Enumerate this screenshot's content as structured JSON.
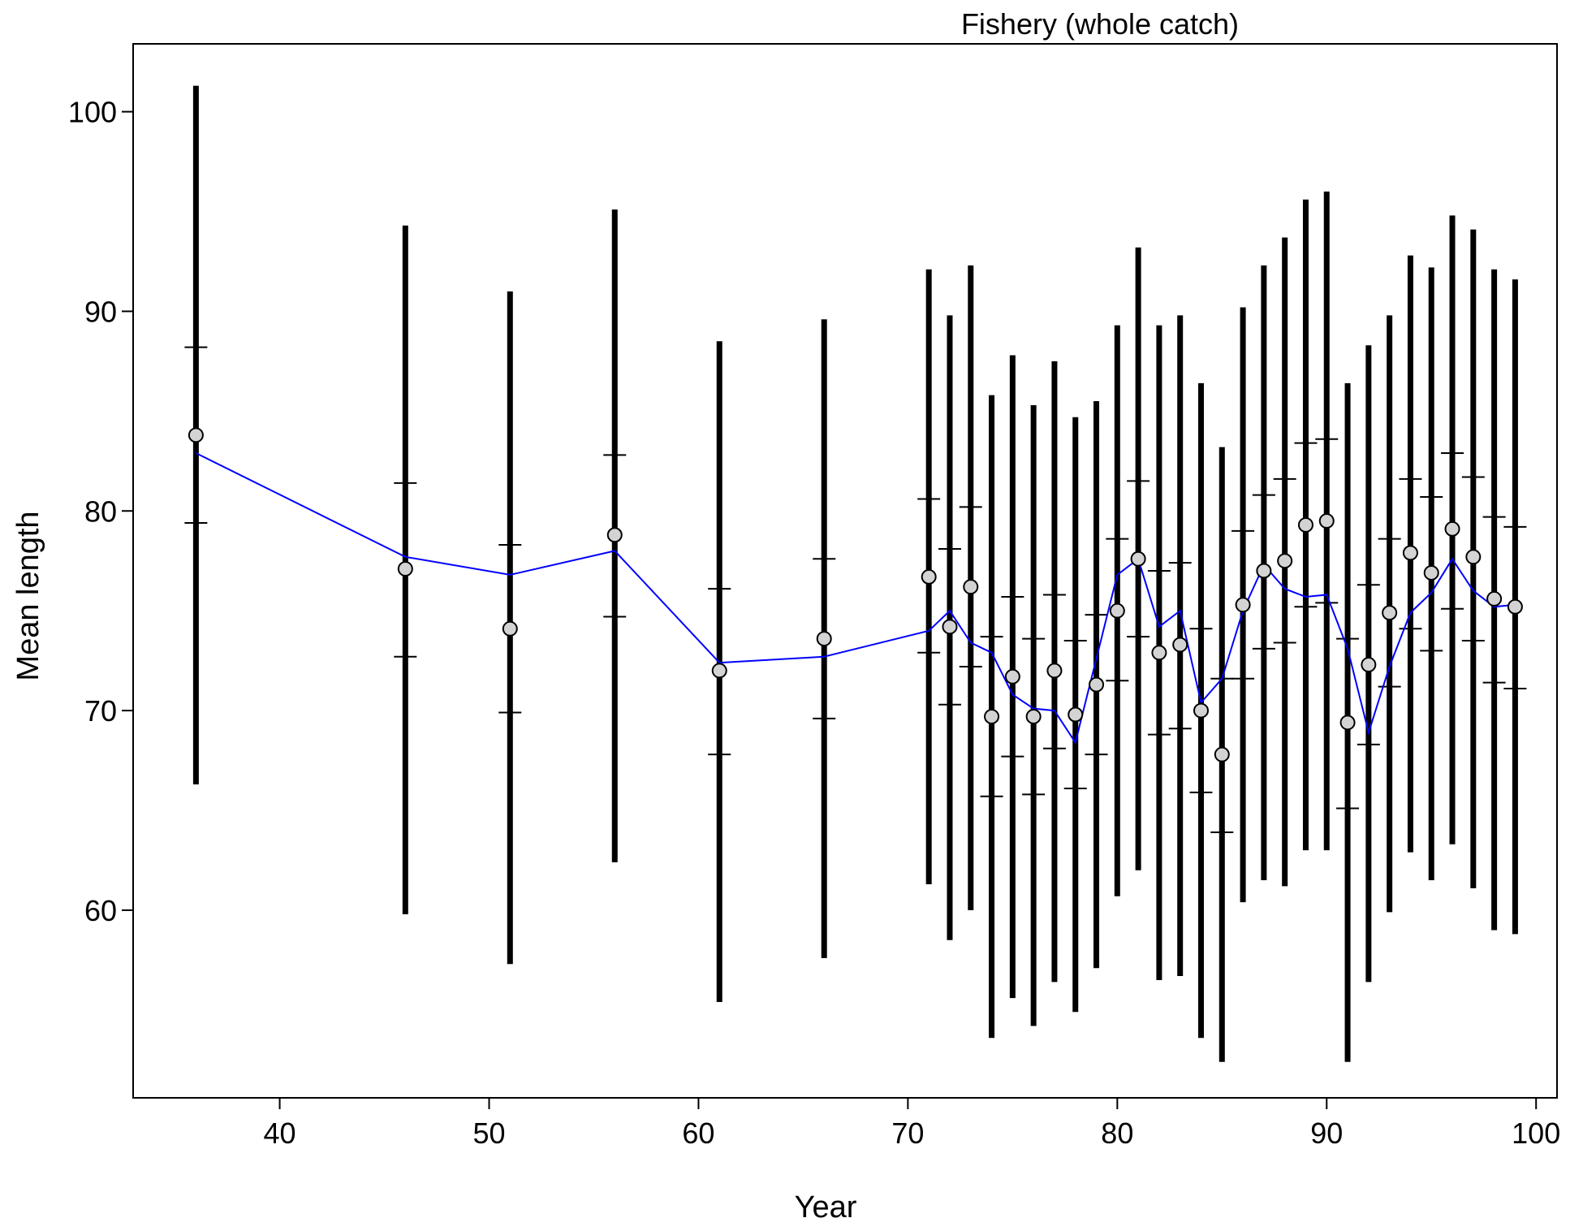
{
  "chart_data": {
    "type": "scatter",
    "title": "Fishery (whole catch)",
    "xlabel": "Year",
    "ylabel": "Mean length",
    "xlim": [
      33,
      101
    ],
    "ylim": [
      50.6,
      103.4
    ],
    "xticks": [
      40,
      50,
      60,
      70,
      80,
      90,
      100
    ],
    "yticks": [
      60,
      70,
      80,
      90,
      100
    ],
    "grid": false,
    "colors": {
      "observed": "#d3d3d3",
      "expected": "#0000ff",
      "interval": "#000000"
    },
    "points": [
      {
        "x": 36,
        "obs": 83.8,
        "exp": 82.9,
        "lo": 66.3,
        "hi": 101.3,
        "in_lo": 79.4,
        "in_hi": 88.2
      },
      {
        "x": 46,
        "obs": 77.1,
        "exp": 77.7,
        "lo": 59.8,
        "hi": 94.3,
        "in_lo": 72.7,
        "in_hi": 81.4
      },
      {
        "x": 51,
        "obs": 74.1,
        "exp": 76.8,
        "lo": 57.3,
        "hi": 91.0,
        "in_lo": 69.9,
        "in_hi": 78.3
      },
      {
        "x": 56,
        "obs": 78.8,
        "exp": 78.0,
        "lo": 62.4,
        "hi": 95.1,
        "in_lo": 74.7,
        "in_hi": 82.8
      },
      {
        "x": 61,
        "obs": 72.0,
        "exp": 72.4,
        "lo": 55.4,
        "hi": 88.5,
        "in_lo": 67.8,
        "in_hi": 76.1
      },
      {
        "x": 66,
        "obs": 73.6,
        "exp": 72.7,
        "lo": 57.6,
        "hi": 89.6,
        "in_lo": 69.6,
        "in_hi": 77.6
      },
      {
        "x": 71,
        "obs": 76.7,
        "exp": 74.0,
        "lo": 61.3,
        "hi": 92.1,
        "in_lo": 72.9,
        "in_hi": 80.6
      },
      {
        "x": 72,
        "obs": 74.2,
        "exp": 75.0,
        "lo": 58.5,
        "hi": 89.8,
        "in_lo": 70.3,
        "in_hi": 78.1
      },
      {
        "x": 73,
        "obs": 76.2,
        "exp": 73.4,
        "lo": 60.0,
        "hi": 92.3,
        "in_lo": 72.2,
        "in_hi": 80.2
      },
      {
        "x": 74,
        "obs": 69.7,
        "exp": 72.9,
        "lo": 53.6,
        "hi": 85.8,
        "in_lo": 65.7,
        "in_hi": 73.7
      },
      {
        "x": 75,
        "obs": 71.7,
        "exp": 70.8,
        "lo": 55.6,
        "hi": 87.8,
        "in_lo": 67.7,
        "in_hi": 75.7
      },
      {
        "x": 76,
        "obs": 69.7,
        "exp": 70.1,
        "lo": 54.2,
        "hi": 85.3,
        "in_lo": 65.8,
        "in_hi": 73.6
      },
      {
        "x": 77,
        "obs": 72.0,
        "exp": 70.0,
        "lo": 56.4,
        "hi": 87.5,
        "in_lo": 68.1,
        "in_hi": 75.8
      },
      {
        "x": 78,
        "obs": 69.8,
        "exp": 68.4,
        "lo": 54.9,
        "hi": 84.7,
        "in_lo": 66.1,
        "in_hi": 73.5
      },
      {
        "x": 79,
        "obs": 71.3,
        "exp": 72.6,
        "lo": 57.1,
        "hi": 85.5,
        "in_lo": 67.8,
        "in_hi": 74.8
      },
      {
        "x": 80,
        "obs": 75.0,
        "exp": 76.8,
        "lo": 60.7,
        "hi": 89.3,
        "in_lo": 71.5,
        "in_hi": 78.6
      },
      {
        "x": 81,
        "obs": 77.6,
        "exp": 77.6,
        "lo": 62.0,
        "hi": 93.2,
        "in_lo": 73.7,
        "in_hi": 81.5
      },
      {
        "x": 82,
        "obs": 72.9,
        "exp": 74.2,
        "lo": 56.5,
        "hi": 89.3,
        "in_lo": 68.8,
        "in_hi": 77.0
      },
      {
        "x": 83,
        "obs": 73.3,
        "exp": 75.0,
        "lo": 56.7,
        "hi": 89.8,
        "in_lo": 69.1,
        "in_hi": 77.4
      },
      {
        "x": 84,
        "obs": 70.0,
        "exp": 70.4,
        "lo": 53.6,
        "hi": 86.4,
        "in_lo": 65.9,
        "in_hi": 74.1
      },
      {
        "x": 85,
        "obs": 67.8,
        "exp": 71.6,
        "lo": 52.4,
        "hi": 83.2,
        "in_lo": 63.9,
        "in_hi": 71.6
      },
      {
        "x": 86,
        "obs": 75.3,
        "exp": 75.0,
        "lo": 60.4,
        "hi": 90.2,
        "in_lo": 71.6,
        "in_hi": 79.0
      },
      {
        "x": 87,
        "obs": 77.0,
        "exp": 77.3,
        "lo": 61.5,
        "hi": 92.3,
        "in_lo": 73.1,
        "in_hi": 80.8
      },
      {
        "x": 88,
        "obs": 77.5,
        "exp": 76.1,
        "lo": 61.2,
        "hi": 93.7,
        "in_lo": 73.4,
        "in_hi": 81.6
      },
      {
        "x": 89,
        "obs": 79.3,
        "exp": 75.7,
        "lo": 63.0,
        "hi": 95.6,
        "in_lo": 75.2,
        "in_hi": 83.4
      },
      {
        "x": 90,
        "obs": 79.5,
        "exp": 75.8,
        "lo": 63.0,
        "hi": 96.0,
        "in_lo": 75.4,
        "in_hi": 83.6
      },
      {
        "x": 91,
        "obs": 69.4,
        "exp": 73.1,
        "lo": 52.4,
        "hi": 86.4,
        "in_lo": 65.1,
        "in_hi": 73.6
      },
      {
        "x": 92,
        "obs": 72.3,
        "exp": 68.9,
        "lo": 56.4,
        "hi": 88.3,
        "in_lo": 68.3,
        "in_hi": 76.3
      },
      {
        "x": 93,
        "obs": 74.9,
        "exp": 72.2,
        "lo": 59.9,
        "hi": 89.8,
        "in_lo": 71.2,
        "in_hi": 78.6
      },
      {
        "x": 94,
        "obs": 77.9,
        "exp": 74.9,
        "lo": 62.9,
        "hi": 92.8,
        "in_lo": 74.1,
        "in_hi": 81.6
      },
      {
        "x": 95,
        "obs": 76.9,
        "exp": 75.9,
        "lo": 61.5,
        "hi": 92.2,
        "in_lo": 73.0,
        "in_hi": 80.7
      },
      {
        "x": 96,
        "obs": 79.1,
        "exp": 77.6,
        "lo": 63.3,
        "hi": 94.8,
        "in_lo": 75.1,
        "in_hi": 82.9
      },
      {
        "x": 97,
        "obs": 77.7,
        "exp": 76.0,
        "lo": 61.1,
        "hi": 94.1,
        "in_lo": 73.5,
        "in_hi": 81.7
      },
      {
        "x": 98,
        "obs": 75.6,
        "exp": 75.2,
        "lo": 59.0,
        "hi": 92.1,
        "in_lo": 71.4,
        "in_hi": 79.7
      },
      {
        "x": 99,
        "obs": 75.2,
        "exp": 75.3,
        "lo": 58.8,
        "hi": 91.6,
        "in_lo": 71.1,
        "in_hi": 79.2
      }
    ]
  }
}
